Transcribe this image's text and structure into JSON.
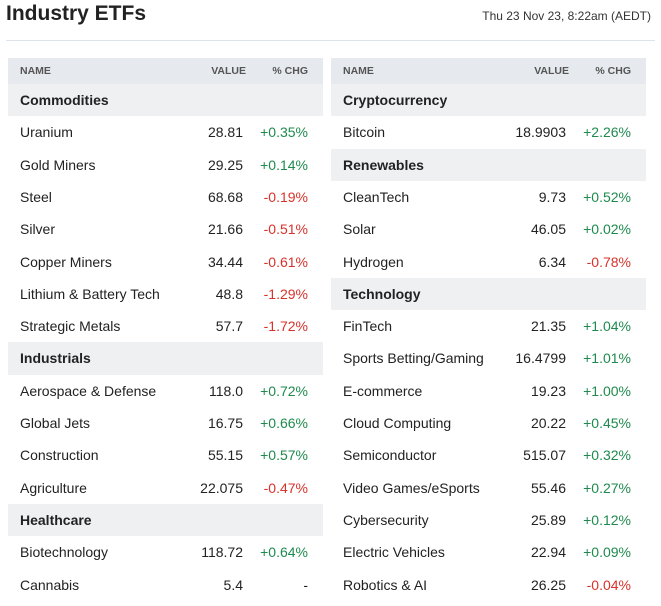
{
  "header": {
    "title": "Industry ETFs",
    "timestamp": "Thu 23 Nov 23, 8:22am (AEDT)"
  },
  "tables": [
    {
      "columns": [
        "NAME",
        "VALUE",
        "% CHG"
      ],
      "groups": [
        {
          "name": "Commodities",
          "rows": [
            [
              "Uranium",
              "28.81",
              "+0.35%"
            ],
            [
              "Gold Miners",
              "29.25",
              "+0.14%"
            ],
            [
              "Steel",
              "68.68",
              "-0.19%"
            ],
            [
              "Silver",
              "21.66",
              "-0.51%"
            ],
            [
              "Copper Miners",
              "34.44",
              "-0.61%"
            ],
            [
              "Lithium & Battery Tech",
              "48.8",
              "-1.29%"
            ],
            [
              "Strategic Metals",
              "57.7",
              "-1.72%"
            ]
          ]
        },
        {
          "name": "Industrials",
          "rows": [
            [
              "Aerospace & Defense",
              "118.0",
              "+0.72%"
            ],
            [
              "Global Jets",
              "16.75",
              "+0.66%"
            ],
            [
              "Construction",
              "55.15",
              "+0.57%"
            ],
            [
              "Agriculture",
              "22.075",
              "-0.47%"
            ]
          ]
        },
        {
          "name": "Healthcare",
          "rows": [
            [
              "Biotechnology",
              "118.72",
              "+0.64%"
            ],
            [
              "Cannabis",
              "5.4",
              "-"
            ]
          ]
        }
      ]
    },
    {
      "columns": [
        "NAME",
        "VALUE",
        "% CHG"
      ],
      "groups": [
        {
          "name": "Cryptocurrency",
          "rows": [
            [
              "Bitcoin",
              "18.9903",
              "+2.26%"
            ]
          ]
        },
        {
          "name": "Renewables",
          "rows": [
            [
              "CleanTech",
              "9.73",
              "+0.52%"
            ],
            [
              "Solar",
              "46.05",
              "+0.02%"
            ],
            [
              "Hydrogen",
              "6.34",
              "-0.78%"
            ]
          ]
        },
        {
          "name": "Technology",
          "rows": [
            [
              "FinTech",
              "21.35",
              "+1.04%"
            ],
            [
              "Sports Betting/Gaming",
              "16.4799",
              "+1.01%"
            ],
            [
              "E-commerce",
              "19.23",
              "+1.00%"
            ],
            [
              "Cloud Computing",
              "20.22",
              "+0.45%"
            ],
            [
              "Semiconductor",
              "515.07",
              "+0.32%"
            ],
            [
              "Video Games/eSports",
              "55.46",
              "+0.27%"
            ],
            [
              "Cybersecurity",
              "25.89",
              "+0.12%"
            ],
            [
              "Electric Vehicles",
              "22.94",
              "+0.09%"
            ],
            [
              "Robotics & AI",
              "26.25",
              "-0.04%"
            ]
          ]
        }
      ]
    }
  ]
}
